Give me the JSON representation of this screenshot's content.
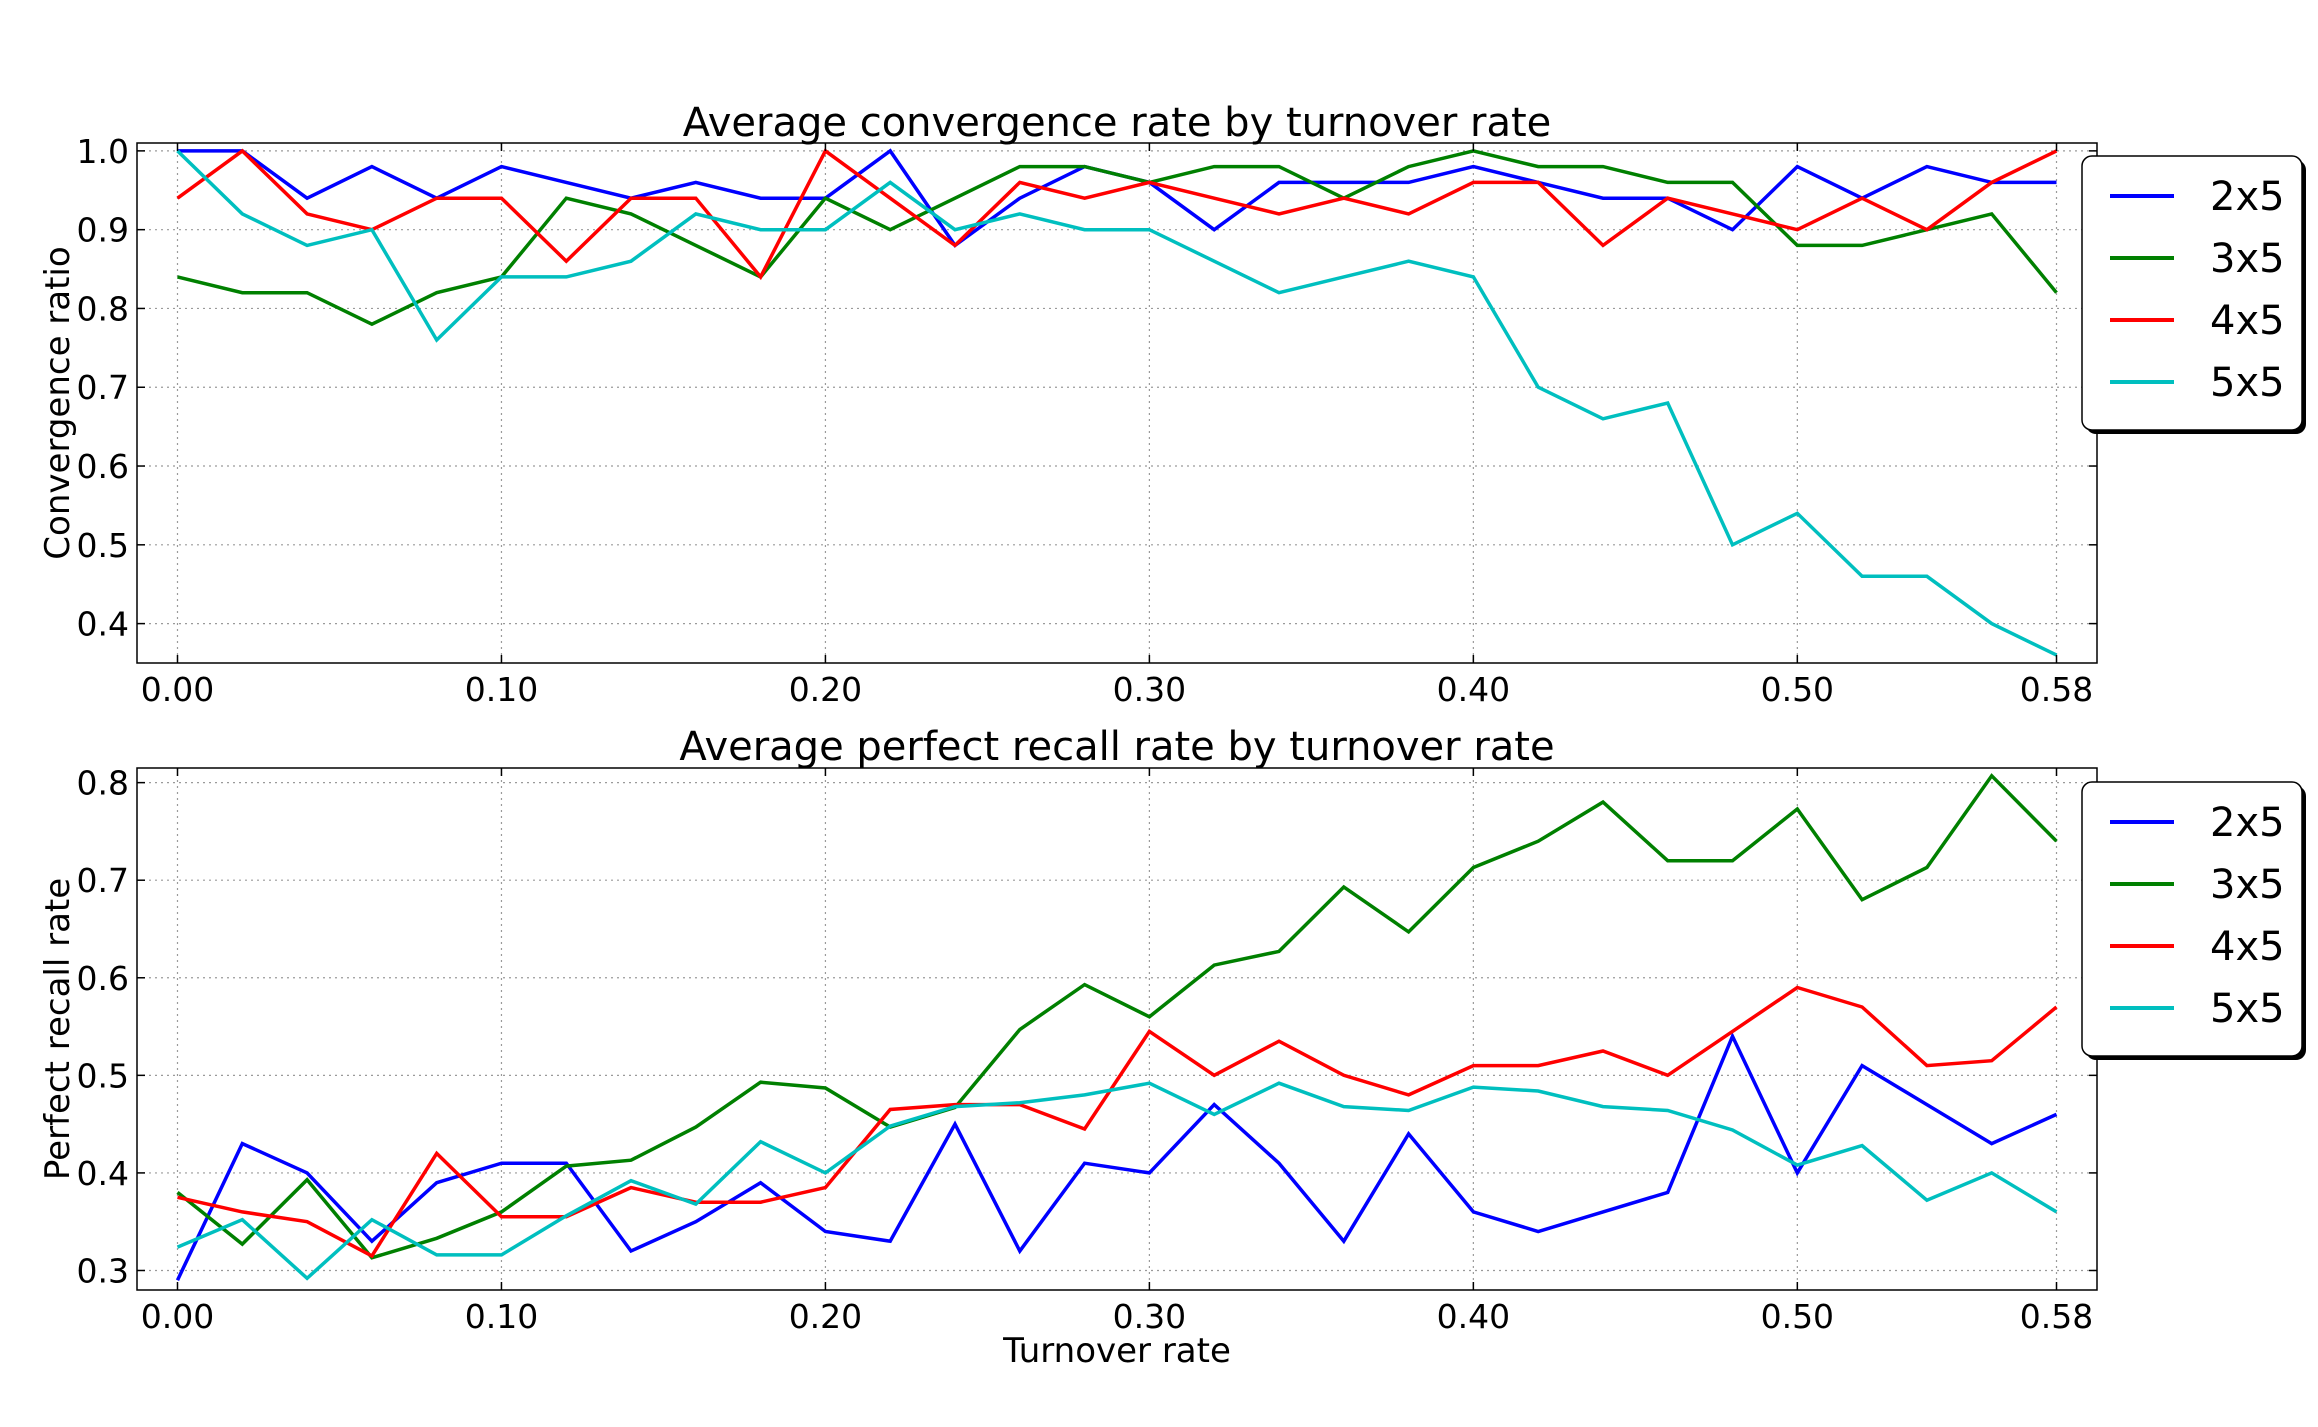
{
  "chart_data": [
    {
      "type": "line",
      "title": "Average convergence rate by turnover rate",
      "xlabel": "",
      "ylabel": "Convergence ratio",
      "xlim": [
        -0.0125,
        0.5925
      ],
      "ylim": [
        0.35,
        1.01
      ],
      "x_ticks": [
        0.0,
        0.1,
        0.2,
        0.3,
        0.4,
        0.5,
        0.58
      ],
      "x_tick_labels": [
        "0.00",
        "0.10",
        "0.20",
        "0.30",
        "0.40",
        "0.50",
        "0.58"
      ],
      "y_ticks": [
        0.4,
        0.5,
        0.6,
        0.7,
        0.8,
        0.9,
        1.0
      ],
      "y_tick_labels": [
        "0.4",
        "0.5",
        "0.6",
        "0.7",
        "0.8",
        "0.9",
        "1.0"
      ],
      "grid": true,
      "legend_position": "outside-right",
      "x": [
        0.0,
        0.02,
        0.04,
        0.06,
        0.08,
        0.1,
        0.12,
        0.14,
        0.16,
        0.18,
        0.2,
        0.22,
        0.24,
        0.26,
        0.28,
        0.3,
        0.32,
        0.34,
        0.36,
        0.38,
        0.4,
        0.42,
        0.44,
        0.46,
        0.48,
        0.5,
        0.52,
        0.54,
        0.56,
        0.58
      ],
      "series": [
        {
          "name": "2x5",
          "color": "#0000ff",
          "values": [
            1.0,
            1.0,
            0.94,
            0.98,
            0.94,
            0.98,
            0.96,
            0.94,
            0.96,
            0.94,
            0.94,
            1.0,
            0.88,
            0.94,
            0.98,
            0.96,
            0.9,
            0.96,
            0.96,
            0.96,
            0.98,
            0.96,
            0.94,
            0.94,
            0.9,
            0.98,
            0.94,
            0.98,
            0.96,
            0.96
          ]
        },
        {
          "name": "3x5",
          "color": "#008000",
          "values": [
            0.84,
            0.82,
            0.82,
            0.78,
            0.82,
            0.84,
            0.94,
            0.92,
            0.88,
            0.84,
            0.94,
            0.9,
            0.94,
            0.98,
            0.98,
            0.96,
            0.98,
            0.98,
            0.94,
            0.98,
            1.0,
            0.98,
            0.98,
            0.96,
            0.96,
            0.88,
            0.88,
            0.9,
            0.92,
            0.82
          ]
        },
        {
          "name": "4x5",
          "color": "#ff0000",
          "values": [
            0.94,
            1.0,
            0.92,
            0.9,
            0.94,
            0.94,
            0.86,
            0.94,
            0.94,
            0.84,
            1.0,
            0.94,
            0.88,
            0.96,
            0.94,
            0.96,
            0.94,
            0.92,
            0.94,
            0.92,
            0.96,
            0.96,
            0.88,
            0.94,
            0.92,
            0.9,
            0.94,
            0.9,
            0.96,
            1.0
          ]
        },
        {
          "name": "5x5",
          "color": "#00bfbf",
          "values": [
            1.0,
            0.92,
            0.88,
            0.9,
            0.76,
            0.84,
            0.84,
            0.86,
            0.92,
            0.9,
            0.9,
            0.96,
            0.9,
            0.92,
            0.9,
            0.9,
            0.86,
            0.82,
            0.84,
            0.86,
            0.84,
            0.7,
            0.66,
            0.68,
            0.5,
            0.54,
            0.46,
            0.46,
            0.4,
            0.36
          ]
        }
      ]
    },
    {
      "type": "line",
      "title": "Average perfect recall rate by turnover rate",
      "xlabel": "Turnover rate",
      "ylabel": "Perfect recall rate",
      "xlim": [
        -0.0125,
        0.5925
      ],
      "ylim": [
        0.28,
        0.815
      ],
      "x_ticks": [
        0.0,
        0.1,
        0.2,
        0.3,
        0.4,
        0.5,
        0.58
      ],
      "x_tick_labels": [
        "0.00",
        "0.10",
        "0.20",
        "0.30",
        "0.40",
        "0.50",
        "0.58"
      ],
      "y_ticks": [
        0.3,
        0.4,
        0.5,
        0.6,
        0.7,
        0.8
      ],
      "y_tick_labels": [
        "0.3",
        "0.4",
        "0.5",
        "0.6",
        "0.7",
        "0.8"
      ],
      "grid": true,
      "legend_position": "outside-right",
      "x": [
        0.0,
        0.02,
        0.04,
        0.06,
        0.08,
        0.1,
        0.12,
        0.14,
        0.16,
        0.18,
        0.2,
        0.22,
        0.24,
        0.26,
        0.28,
        0.3,
        0.32,
        0.34,
        0.36,
        0.38,
        0.4,
        0.42,
        0.44,
        0.46,
        0.48,
        0.5,
        0.52,
        0.54,
        0.56,
        0.58
      ],
      "series": [
        {
          "name": "2x5",
          "color": "#0000ff",
          "values": [
            0.29,
            0.43,
            0.4,
            0.33,
            0.39,
            0.41,
            0.41,
            0.32,
            0.35,
            0.39,
            0.34,
            0.33,
            0.45,
            0.32,
            0.41,
            0.4,
            0.47,
            0.41,
            0.33,
            0.44,
            0.36,
            0.34,
            0.36,
            0.38,
            0.54,
            0.4,
            0.51,
            0.47,
            0.43,
            0.46
          ]
        },
        {
          "name": "3x5",
          "color": "#008000",
          "values": [
            0.38,
            0.327,
            0.393,
            0.313,
            0.333,
            0.36,
            0.407,
            0.413,
            0.447,
            0.493,
            0.487,
            0.447,
            0.467,
            0.547,
            0.593,
            0.56,
            0.613,
            0.627,
            0.693,
            0.647,
            0.713,
            0.74,
            0.78,
            0.72,
            0.72,
            0.773,
            0.68,
            0.713,
            0.807,
            0.74
          ]
        },
        {
          "name": "4x5",
          "color": "#ff0000",
          "values": [
            0.375,
            0.36,
            0.35,
            0.315,
            0.42,
            0.355,
            0.355,
            0.385,
            0.37,
            0.37,
            0.385,
            0.465,
            0.47,
            0.47,
            0.445,
            0.545,
            0.5,
            0.535,
            0.5,
            0.48,
            0.51,
            0.51,
            0.525,
            0.5,
            0.545,
            0.59,
            0.57,
            0.51,
            0.515,
            0.57
          ]
        },
        {
          "name": "5x5",
          "color": "#00bfbf",
          "values": [
            0.324,
            0.352,
            0.292,
            0.352,
            0.316,
            0.316,
            0.356,
            0.392,
            0.368,
            0.432,
            0.4,
            0.448,
            0.468,
            0.472,
            0.48,
            0.492,
            0.46,
            0.492,
            0.468,
            0.464,
            0.488,
            0.484,
            0.468,
            0.464,
            0.444,
            0.408,
            0.428,
            0.372,
            0.4,
            0.36
          ]
        }
      ]
    }
  ]
}
